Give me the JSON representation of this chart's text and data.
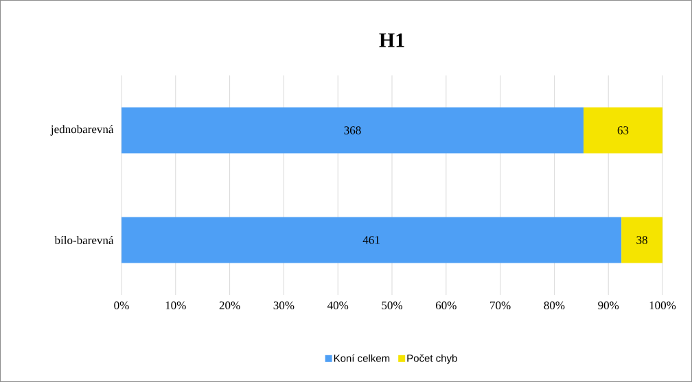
{
  "chart_data": {
    "type": "bar",
    "title": "H1",
    "orientation": "horizontal",
    "stacked": true,
    "categories": [
      "jednobarevná",
      "bílo-barevná"
    ],
    "series": [
      {
        "name": "Koní celkem",
        "color": "#4e9ff5",
        "values": [
          85.4,
          92.4
        ]
      },
      {
        "name": "Počet chyb",
        "color": "#f5e400",
        "values": [
          14.6,
          7.6
        ]
      }
    ],
    "annotations": [
      "368",
      "461",
      "63",
      "38"
    ],
    "xlim": [
      0,
      100
    ],
    "xticks": [
      {
        "value": 0,
        "label": "0%"
      },
      {
        "value": 10,
        "label": "10%"
      },
      {
        "value": 20,
        "label": "20%"
      },
      {
        "value": 30,
        "label": "30%"
      },
      {
        "value": 40,
        "label": "40%"
      },
      {
        "value": 50,
        "label": "50%"
      },
      {
        "value": 60,
        "label": "60%"
      },
      {
        "value": 70,
        "label": "70%"
      },
      {
        "value": 80,
        "label": "80%"
      },
      {
        "value": 90,
        "label": "90%"
      },
      {
        "value": 100,
        "label": "100%"
      }
    ],
    "grid": "x",
    "legend": "bottom"
  }
}
